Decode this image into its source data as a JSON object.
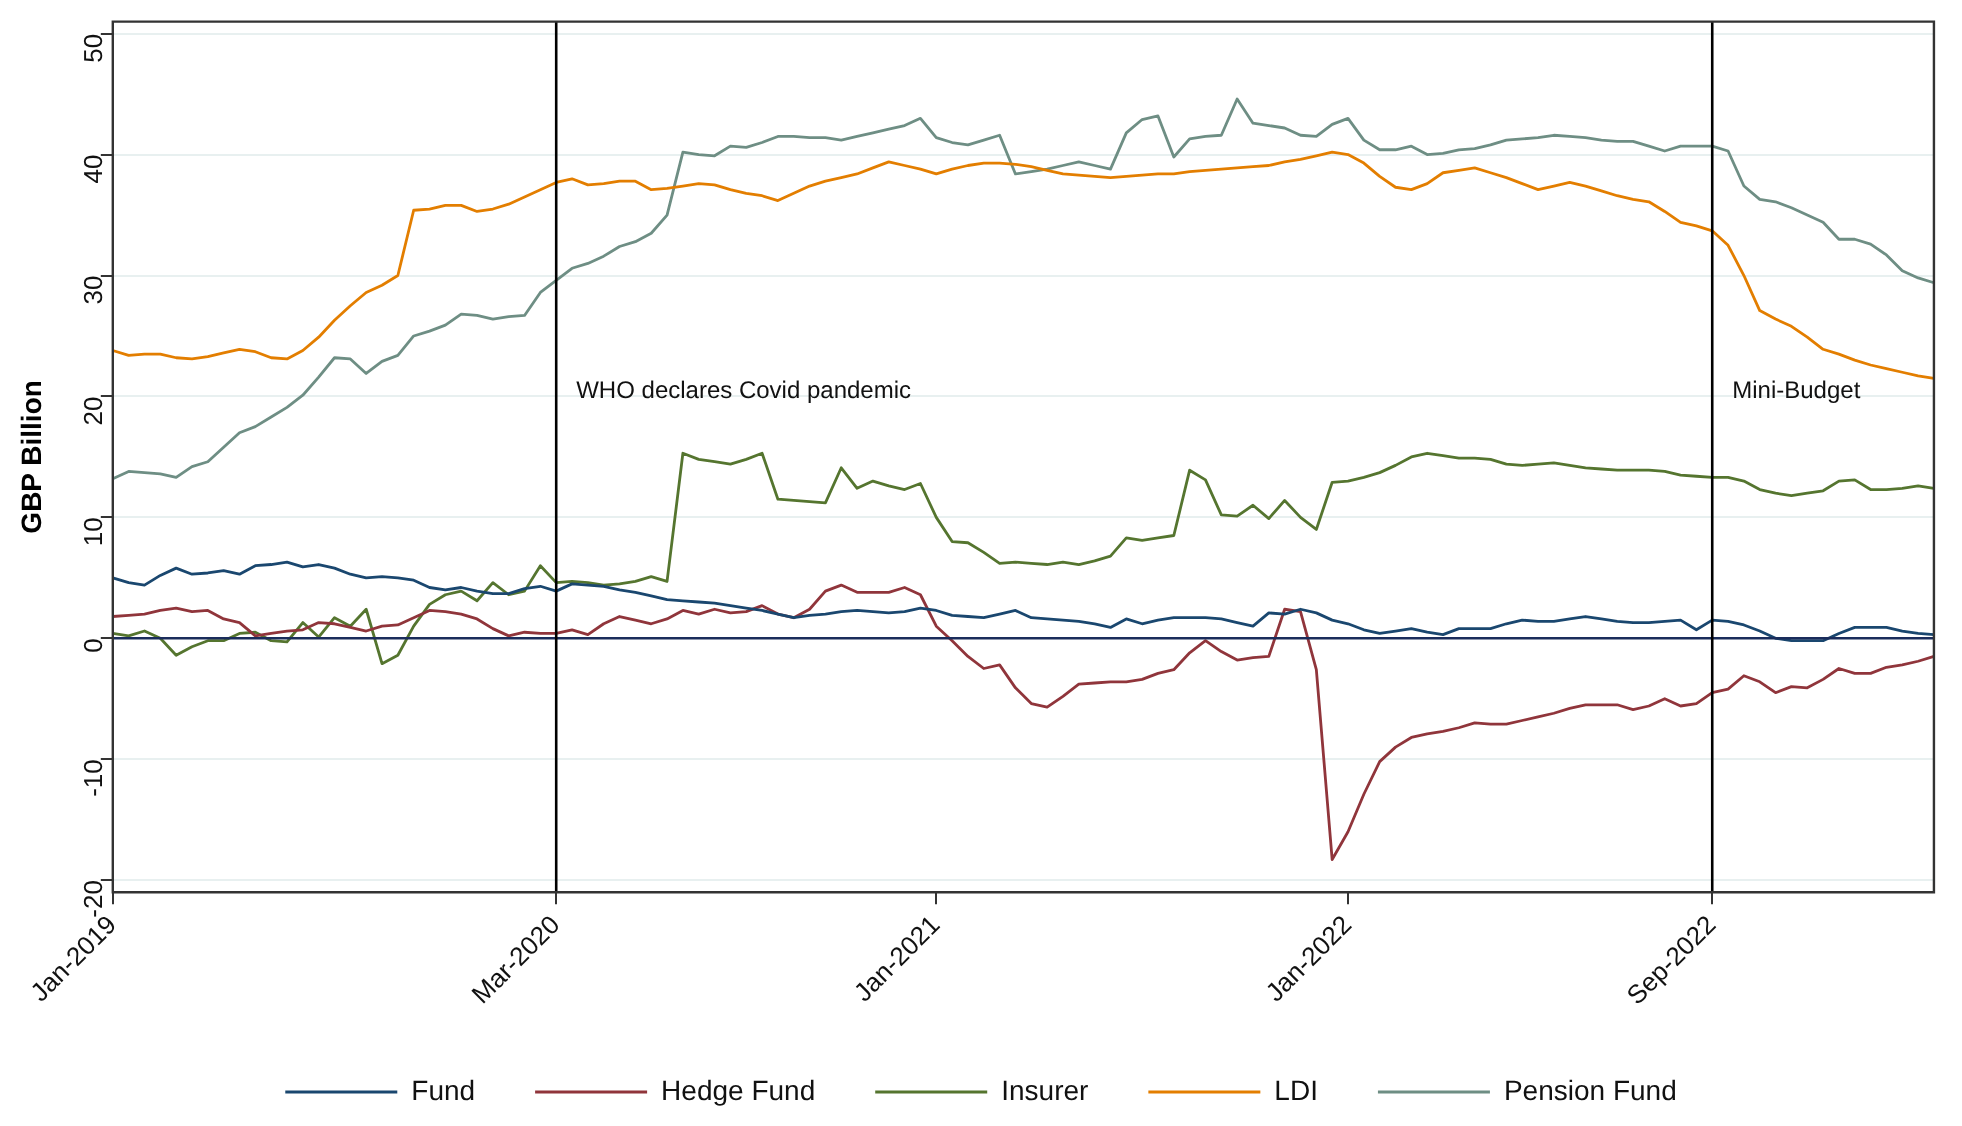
{
  "chart_data": {
    "type": "line",
    "ylabel": "GBP Billion",
    "categories": [
      "Jan-2019",
      null,
      null,
      null,
      null,
      null,
      null,
      null,
      null,
      null,
      null,
      null,
      null,
      null,
      null,
      null,
      null,
      null,
      null,
      null,
      null,
      null,
      null,
      null,
      null,
      null,
      null,
      null,
      "Mar-2020",
      null,
      null,
      null,
      null,
      null,
      null,
      null,
      null,
      null,
      null,
      null,
      null,
      null,
      null,
      null,
      null,
      null,
      null,
      null,
      null,
      null,
      null,
      null,
      "Jan-2021",
      null,
      null,
      null,
      null,
      null,
      null,
      null,
      null,
      null,
      null,
      null,
      null,
      null,
      null,
      null,
      null,
      null,
      null,
      null,
      null,
      null,
      null,
      null,
      null,
      null,
      "Jan-2022",
      null,
      null,
      null,
      null,
      null,
      null,
      null,
      null,
      null,
      null,
      null,
      null,
      null,
      null,
      null,
      null,
      null,
      null,
      null,
      null,
      null,
      null,
      "Sep-2022",
      null,
      null,
      null,
      null,
      null,
      null,
      null,
      null,
      null,
      null,
      null,
      null,
      null,
      null
    ],
    "ylim": [
      -21,
      51
    ],
    "yticks": [
      -20,
      -10,
      0,
      10,
      20,
      30,
      40,
      50
    ],
    "grid": "y",
    "legend": "bottom",
    "marker": "none",
    "line_style": "solid",
    "ref_lines": [
      {
        "axis": "y",
        "value": 0,
        "color": "#1a2c5b"
      },
      {
        "axis": "x",
        "value": "Mar-2020",
        "label": "WHO declares Covid pandemic",
        "color": "#000000"
      },
      {
        "axis": "x",
        "value": "Sep-2022",
        "label": "Mini-Budget",
        "color": "#000000"
      }
    ],
    "series": [
      {
        "name": "Fund",
        "color": "#1a476f",
        "values": [
          5.0,
          4.6,
          4.4,
          5.2,
          5.8,
          5.3,
          5.4,
          5.6,
          5.3,
          6.0,
          6.1,
          6.3,
          5.9,
          6.1,
          5.8,
          5.3,
          5.0,
          5.1,
          5.0,
          4.8,
          4.2,
          4.0,
          4.2,
          3.9,
          3.7,
          3.7,
          4.1,
          4.3,
          3.9,
          4.5,
          4.4,
          4.3,
          4.0,
          3.8,
          3.5,
          3.2,
          3.1,
          3.0,
          2.9,
          2.7,
          2.5,
          2.3,
          2.0,
          1.7,
          1.9,
          2.0,
          2.2,
          2.3,
          2.2,
          2.1,
          2.2,
          2.5,
          2.3,
          1.9,
          1.8,
          1.7,
          2.0,
          2.3,
          1.7,
          1.6,
          1.5,
          1.4,
          1.2,
          0.9,
          1.6,
          1.2,
          1.5,
          1.7,
          1.7,
          1.7,
          1.6,
          1.3,
          1.0,
          2.1,
          2.0,
          2.4,
          2.1,
          1.5,
          1.2,
          0.7,
          0.4,
          0.6,
          0.8,
          0.5,
          0.3,
          0.8,
          0.8,
          0.8,
          1.2,
          1.5,
          1.4,
          1.4,
          1.6,
          1.8,
          1.6,
          1.4,
          1.3,
          1.3,
          1.4,
          1.5,
          0.7,
          1.5,
          1.4,
          1.1,
          0.6,
          0.0,
          -0.2,
          -0.2,
          -0.2,
          0.4,
          0.9,
          0.9,
          0.9,
          0.6,
          0.4,
          0.3
        ]
      },
      {
        "name": "Hedge Fund",
        "color": "#90353b",
        "values": [
          1.8,
          1.9,
          2.0,
          2.3,
          2.5,
          2.2,
          2.3,
          1.6,
          1.3,
          0.2,
          0.4,
          0.6,
          0.7,
          1.3,
          1.2,
          0.9,
          0.6,
          1.0,
          1.1,
          1.7,
          2.3,
          2.2,
          2.0,
          1.6,
          0.8,
          0.2,
          0.5,
          0.4,
          0.4,
          0.7,
          0.3,
          1.2,
          1.8,
          1.5,
          1.2,
          1.6,
          2.3,
          2.0,
          2.4,
          2.1,
          2.2,
          2.7,
          2.0,
          1.7,
          2.4,
          3.9,
          4.4,
          3.8,
          3.8,
          3.8,
          4.2,
          3.6,
          1.0,
          -0.2,
          -1.5,
          -2.5,
          -2.2,
          -4.1,
          -5.4,
          -5.7,
          -4.8,
          -3.8,
          -3.7,
          -3.6,
          -3.6,
          -3.4,
          -2.9,
          -2.6,
          -1.2,
          -0.2,
          -1.1,
          -1.8,
          -1.6,
          -1.5,
          2.4,
          2.2,
          -2.6,
          -18.3,
          -16.0,
          -12.9,
          -10.2,
          -9.0,
          -8.2,
          -7.9,
          -7.7,
          -7.4,
          -7.0,
          -7.1,
          -7.1,
          -6.8,
          -6.5,
          -6.2,
          -5.8,
          -5.5,
          -5.5,
          -5.5,
          -5.9,
          -5.6,
          -5.0,
          -5.6,
          -5.4,
          -4.5,
          -4.2,
          -3.1,
          -3.6,
          -4.5,
          -4.0,
          -4.1,
          -3.4,
          -2.5,
          -2.9,
          -2.9,
          -2.4,
          -2.2,
          -1.9,
          -1.5
        ]
      },
      {
        "name": "Insurer",
        "color": "#55752f",
        "values": [
          0.4,
          0.2,
          0.6,
          0.0,
          -1.4,
          -0.7,
          -0.2,
          -0.2,
          0.4,
          0.5,
          -0.2,
          -0.3,
          1.3,
          0.1,
          1.7,
          1.0,
          2.4,
          -2.1,
          -1.4,
          1.0,
          2.8,
          3.6,
          3.9,
          3.1,
          4.6,
          3.6,
          3.9,
          6.0,
          4.6,
          4.7,
          4.6,
          4.4,
          4.5,
          4.7,
          5.1,
          4.7,
          15.3,
          14.8,
          14.6,
          14.4,
          14.8,
          15.3,
          11.5,
          11.4,
          11.3,
          11.2,
          14.1,
          12.4,
          13.0,
          12.6,
          12.3,
          12.8,
          10.0,
          8.0,
          7.9,
          7.1,
          6.2,
          6.3,
          6.2,
          6.1,
          6.3,
          6.1,
          6.4,
          6.8,
          8.3,
          8.1,
          8.3,
          8.5,
          13.9,
          13.1,
          10.2,
          10.1,
          11.0,
          9.9,
          11.4,
          10.0,
          9.0,
          12.9,
          13.0,
          13.3,
          13.7,
          14.3,
          15.0,
          15.3,
          15.1,
          14.9,
          14.9,
          14.8,
          14.4,
          14.3,
          14.4,
          14.5,
          14.3,
          14.1,
          14.0,
          13.9,
          13.9,
          13.9,
          13.8,
          13.5,
          13.4,
          13.3,
          13.3,
          13.0,
          12.3,
          12.0,
          11.8,
          12.0,
          12.2,
          13.0,
          13.1,
          12.3,
          12.3,
          12.4,
          12.6,
          12.4
        ]
      },
      {
        "name": "LDI",
        "color": "#e37e00",
        "values": [
          23.8,
          23.4,
          23.5,
          23.5,
          23.2,
          23.1,
          23.3,
          23.6,
          23.9,
          23.7,
          23.2,
          23.1,
          23.8,
          24.9,
          26.3,
          27.5,
          28.6,
          29.2,
          30.0,
          35.4,
          35.5,
          35.8,
          35.8,
          35.3,
          35.5,
          35.9,
          36.5,
          37.1,
          37.7,
          38.0,
          37.5,
          37.6,
          37.8,
          37.8,
          37.1,
          37.2,
          37.4,
          37.6,
          37.5,
          37.1,
          36.8,
          36.6,
          36.2,
          36.8,
          37.4,
          37.8,
          38.1,
          38.4,
          38.9,
          39.4,
          39.1,
          38.8,
          38.4,
          38.8,
          39.1,
          39.3,
          39.3,
          39.2,
          39.0,
          38.7,
          38.4,
          38.3,
          38.2,
          38.1,
          38.2,
          38.3,
          38.4,
          38.4,
          38.6,
          38.7,
          38.8,
          38.9,
          39.0,
          39.1,
          39.4,
          39.6,
          39.9,
          40.2,
          40.0,
          39.3,
          38.2,
          37.3,
          37.1,
          37.6,
          38.5,
          38.7,
          38.9,
          38.5,
          38.1,
          37.6,
          37.1,
          37.4,
          37.7,
          37.4,
          37.0,
          36.6,
          36.3,
          36.1,
          35.3,
          34.4,
          34.1,
          33.7,
          32.5,
          30.0,
          27.1,
          26.4,
          25.8,
          24.9,
          23.9,
          23.5,
          23.0,
          22.6,
          22.3,
          22.0,
          21.7,
          21.5
        ]
      },
      {
        "name": "Pension Fund",
        "color": "#6e8e84",
        "values": [
          13.2,
          13.8,
          13.7,
          13.6,
          13.3,
          14.2,
          14.6,
          15.8,
          17.0,
          17.5,
          18.3,
          19.1,
          20.1,
          21.6,
          23.2,
          23.1,
          21.9,
          22.9,
          23.4,
          25.0,
          25.4,
          25.9,
          26.8,
          26.7,
          26.4,
          26.6,
          26.7,
          28.6,
          29.6,
          30.6,
          31.0,
          31.6,
          32.4,
          32.8,
          33.5,
          35.0,
          40.2,
          40.0,
          39.9,
          40.7,
          40.6,
          41.0,
          41.5,
          41.5,
          41.4,
          41.4,
          41.2,
          41.5,
          41.8,
          42.1,
          42.4,
          43.0,
          41.4,
          41.0,
          40.8,
          41.2,
          41.6,
          38.4,
          38.6,
          38.8,
          39.1,
          39.4,
          39.1,
          38.8,
          41.8,
          42.9,
          43.2,
          39.8,
          41.3,
          41.5,
          41.6,
          44.6,
          42.6,
          42.4,
          42.2,
          41.6,
          41.5,
          42.5,
          43.0,
          41.2,
          40.4,
          40.4,
          40.7,
          40.0,
          40.1,
          40.4,
          40.5,
          40.8,
          41.2,
          41.3,
          41.4,
          41.6,
          41.5,
          41.4,
          41.2,
          41.1,
          41.1,
          40.7,
          40.3,
          40.7,
          40.7,
          40.7,
          40.3,
          37.4,
          36.3,
          36.1,
          35.6,
          35.0,
          34.4,
          33.0,
          33.0,
          32.6,
          31.7,
          30.4,
          29.8,
          29.4
        ]
      }
    ]
  }
}
